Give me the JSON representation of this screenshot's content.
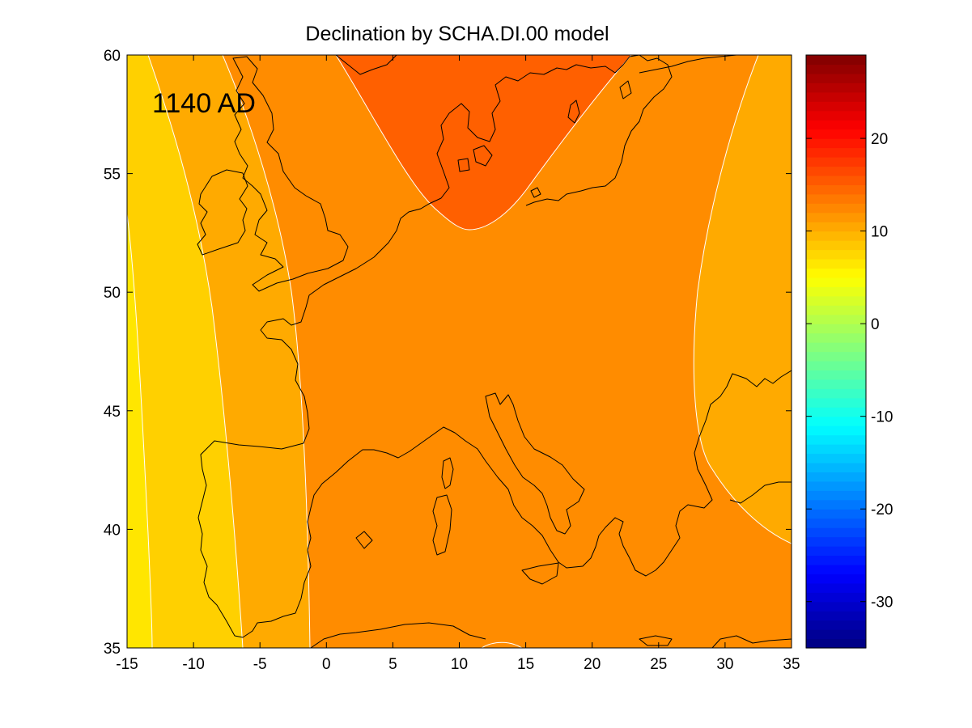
{
  "chart_data": {
    "type": "heatmap",
    "title": "Declination by SCHA.DI.00 model",
    "annotation": "1140 AD",
    "xlabel": "",
    "ylabel": "",
    "xlim": [
      -15,
      35
    ],
    "ylim": [
      35,
      60
    ],
    "x_ticks": [
      "-15",
      "-10",
      "-5",
      "0",
      "5",
      "10",
      "15",
      "20",
      "25",
      "30",
      "35"
    ],
    "y_ticks": [
      "35",
      "40",
      "45",
      "50",
      "55",
      "60"
    ],
    "colorbar": {
      "range": [
        -35,
        29
      ],
      "ticks": [
        "-30",
        "-20",
        "-10",
        "0",
        "10",
        "20"
      ],
      "colormap": "jet"
    },
    "contour_levels": [
      {
        "value": 5,
        "color": "#ffe600"
      },
      {
        "value": 6.5,
        "color": "#ffd000"
      },
      {
        "value": 8,
        "color": "#ffaa00"
      },
      {
        "value": 9.5,
        "color": "#ff8c00"
      },
      {
        "value": 11,
        "color": "#ff6000"
      }
    ]
  }
}
